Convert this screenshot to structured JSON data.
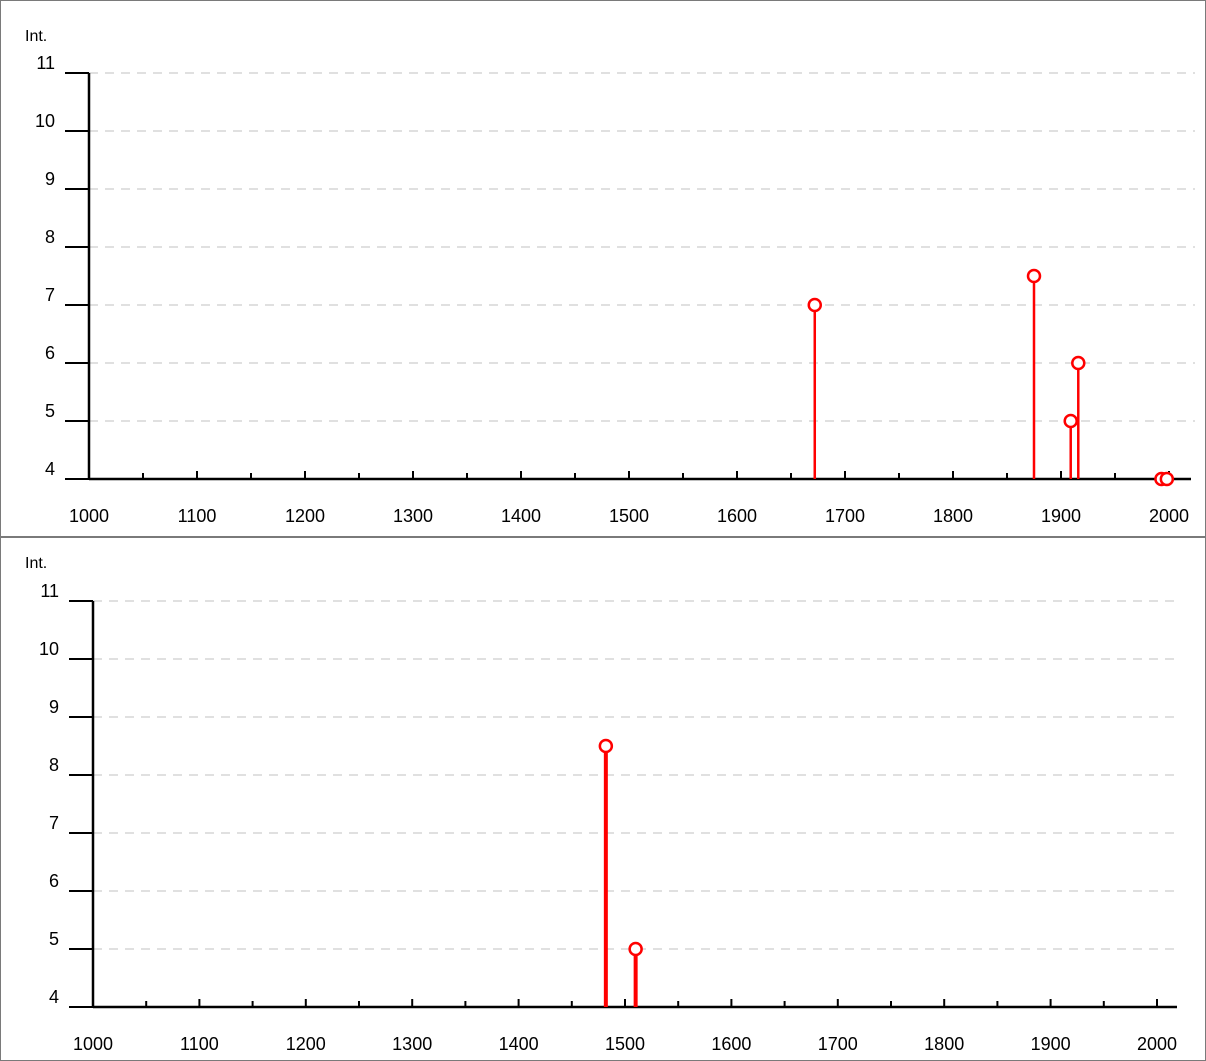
{
  "colors": {
    "stem": "#ff0000",
    "axis": "#000000",
    "grid": "#c0c0c0"
  },
  "chart_data": [
    {
      "type": "scatter",
      "style": "stem",
      "ylabel": "Int.",
      "xlabel": "",
      "xlim": [
        1000,
        2000
      ],
      "ylim": [
        4,
        11
      ],
      "x_ticks": [
        1000,
        1100,
        1200,
        1300,
        1400,
        1500,
        1600,
        1700,
        1800,
        1900,
        2000
      ],
      "y_ticks": [
        4,
        5,
        6,
        7,
        8,
        9,
        10,
        11
      ],
      "grid": "horizontal dashed",
      "series": [
        {
          "points": [
            {
              "x": 1672,
              "y": 7
            },
            {
              "x": 1875,
              "y": 7.5
            },
            {
              "x": 1909,
              "y": 5
            },
            {
              "x": 1916,
              "y": 6
            },
            {
              "x": 1993,
              "y": 4
            },
            {
              "x": 1998,
              "y": 4
            }
          ]
        }
      ]
    },
    {
      "type": "scatter",
      "style": "stem",
      "ylabel": "Int.",
      "xlabel": "",
      "xlim": [
        1000,
        2000
      ],
      "ylim": [
        4,
        11
      ],
      "x_ticks": [
        1000,
        1100,
        1200,
        1300,
        1400,
        1500,
        1600,
        1700,
        1800,
        1900,
        2000
      ],
      "y_ticks": [
        4,
        5,
        6,
        7,
        8,
        9,
        10,
        11
      ],
      "grid": "horizontal dashed",
      "series": [
        {
          "points": [
            {
              "x": 1482,
              "y": 8.5
            },
            {
              "x": 1510,
              "y": 5
            }
          ]
        }
      ]
    }
  ]
}
